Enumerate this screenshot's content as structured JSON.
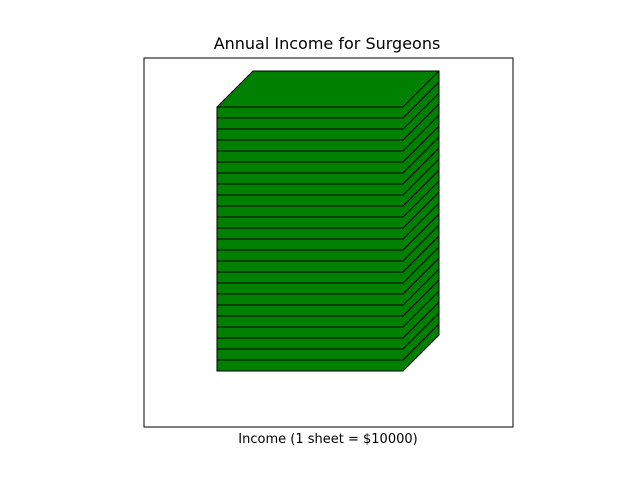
{
  "chart_data": {
    "type": "bar",
    "title": "Annual Income for Surgeons",
    "xlabel": "Income (1 sheet = $10000)",
    "ylabel": "",
    "unit_per_sheet": 10000,
    "value": 240000,
    "sheets": 24,
    "sheet_color": "#008000",
    "edge_color": "#000000",
    "grid": false,
    "legend": "none"
  }
}
